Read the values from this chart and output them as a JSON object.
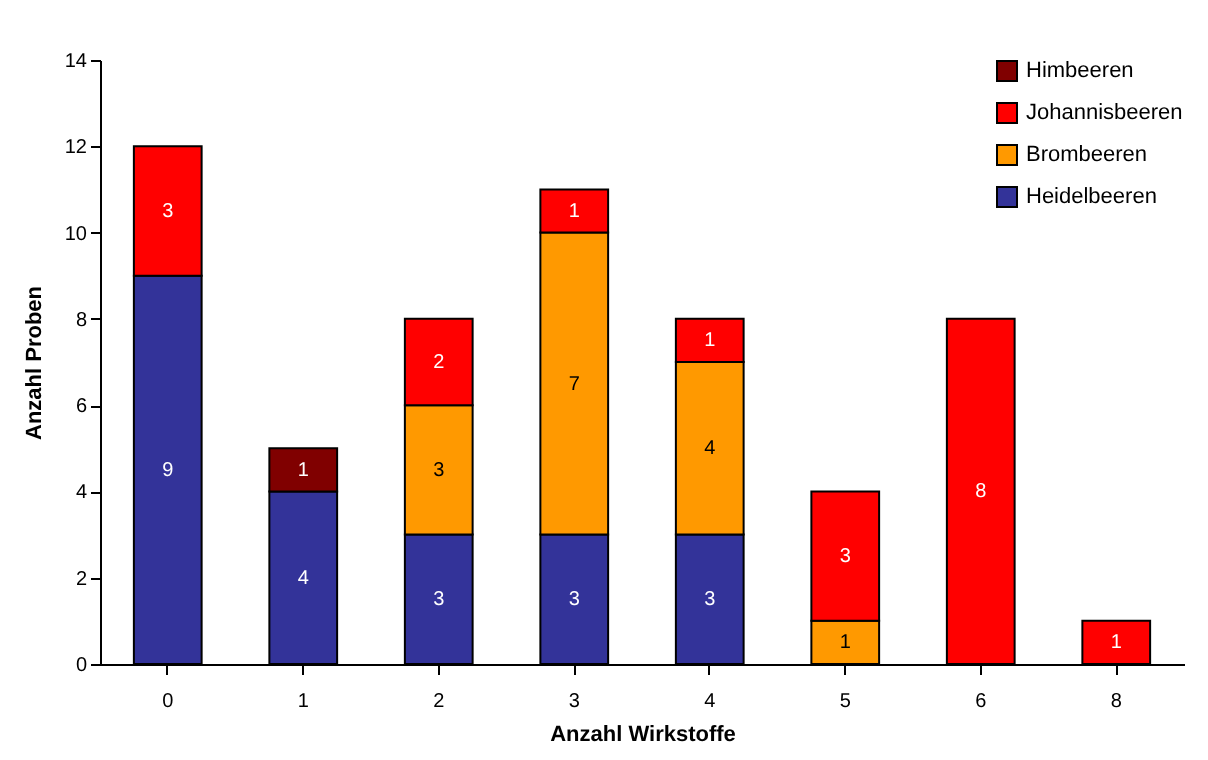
{
  "chart_data": {
    "type": "bar",
    "stacked": true,
    "xlabel": "Anzahl Wirkstoffe",
    "ylabel": "Anzahl Proben",
    "categories": [
      "0",
      "1",
      "2",
      "3",
      "4",
      "5",
      "6",
      "8"
    ],
    "series": [
      {
        "name": "Heidelbeeren",
        "color": "#333399",
        "values": [
          9,
          4,
          3,
          3,
          3,
          null,
          null,
          null
        ]
      },
      {
        "name": "Brombeeren",
        "color": "#ff9900",
        "values": [
          null,
          null,
          3,
          7,
          4,
          1,
          null,
          null
        ]
      },
      {
        "name": "Johannisbeeren",
        "color": "#ff0000",
        "values": [
          3,
          null,
          2,
          1,
          1,
          3,
          8,
          1
        ]
      },
      {
        "name": "Himbeeren",
        "color": "#800000",
        "values": [
          null,
          1,
          null,
          null,
          null,
          null,
          null,
          null
        ]
      }
    ],
    "ylim": [
      0,
      14
    ],
    "yticks": [
      0,
      2,
      4,
      6,
      8,
      10,
      12,
      14
    ],
    "grid": false,
    "legend": "top right",
    "data_labels": true
  }
}
